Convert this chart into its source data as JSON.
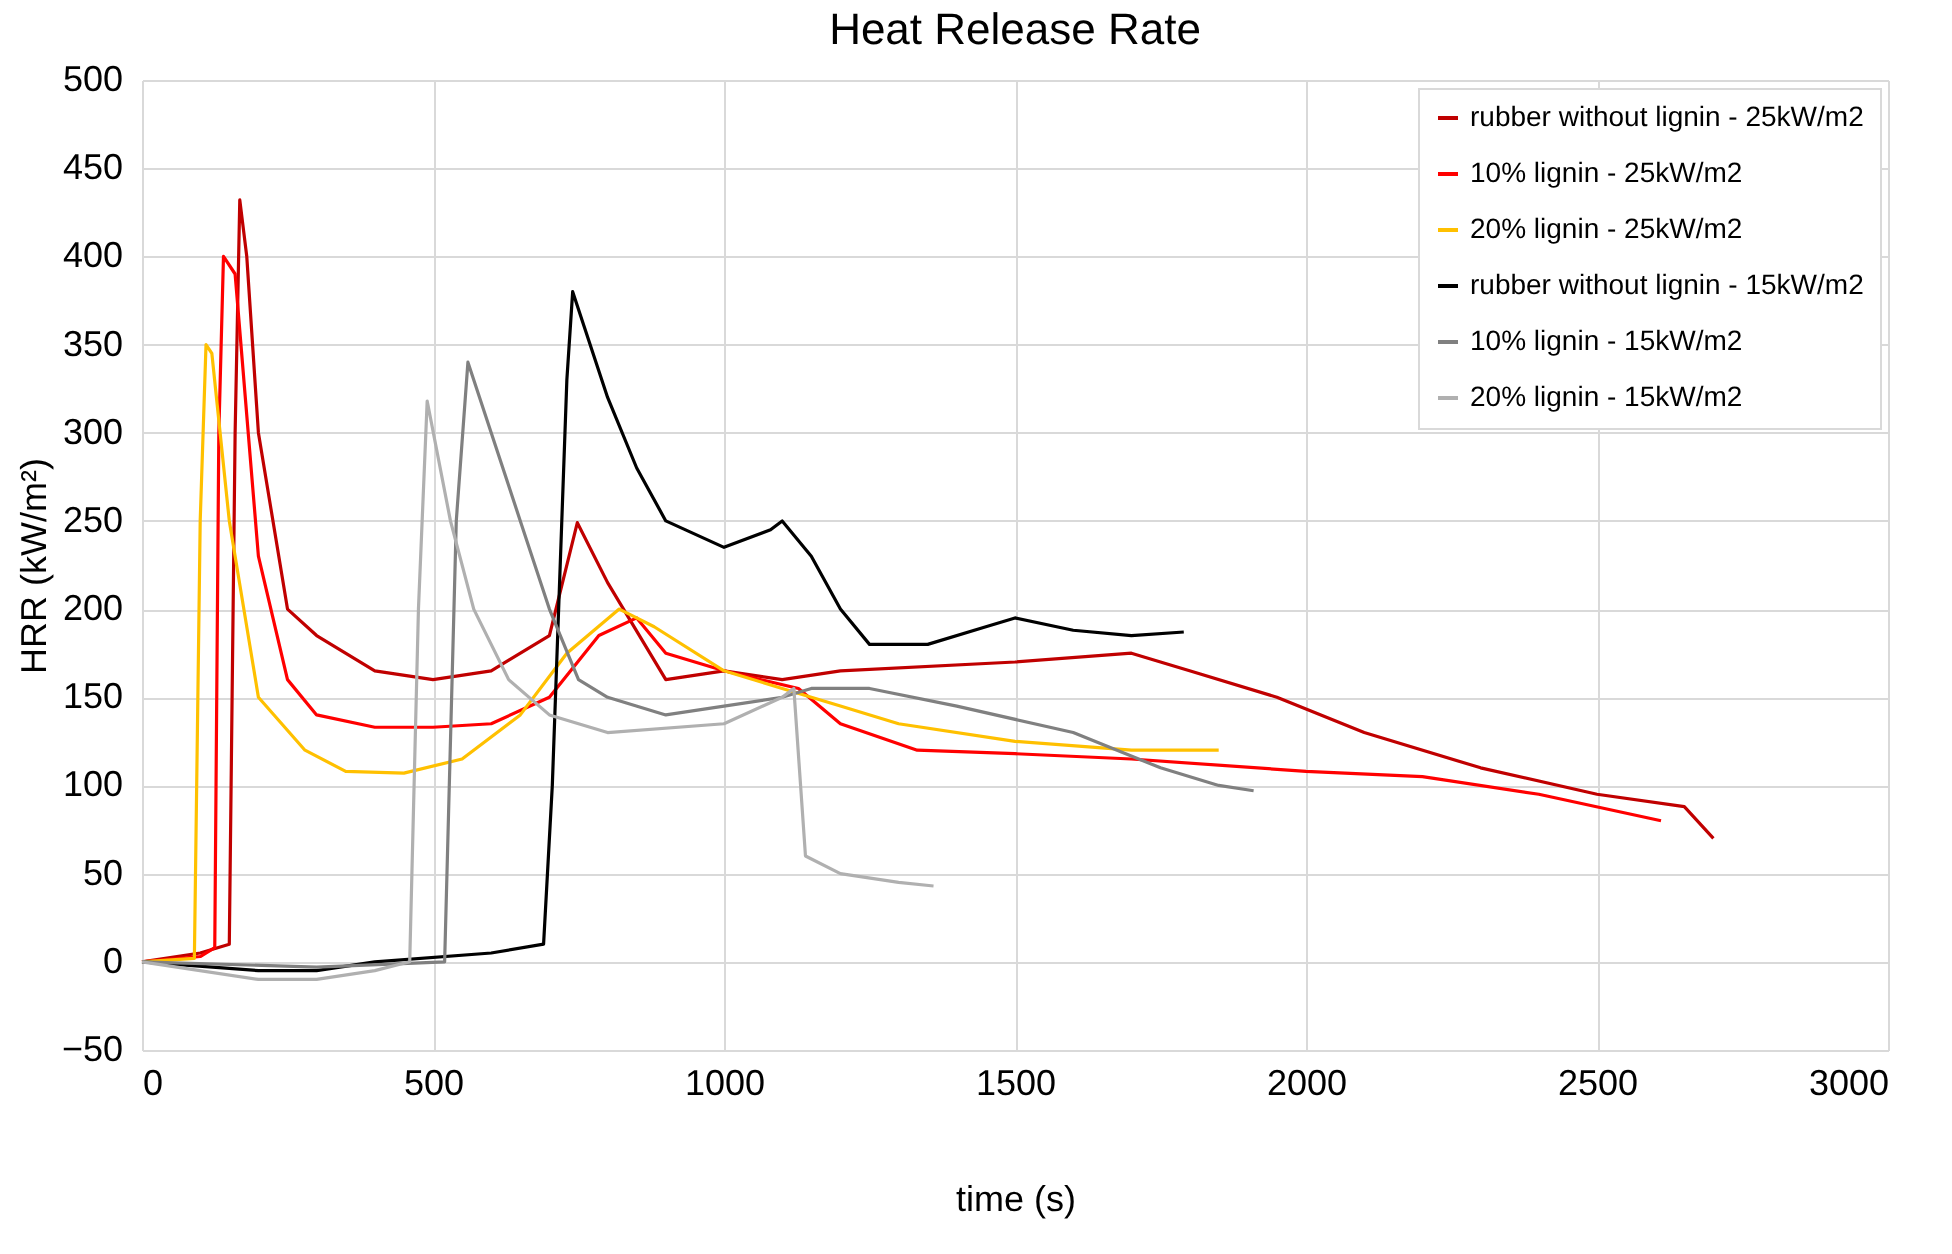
{
  "chart_data": {
    "type": "line",
    "title": "Heat Release Rate",
    "xlabel": "time (s)",
    "ylabel": "HRR (kW/m²)",
    "xlim": [
      0,
      3000
    ],
    "xticks": [
      0,
      500,
      1000,
      1500,
      2000,
      2500,
      3000
    ],
    "ylim": [
      -50,
      500
    ],
    "yticks": [
      -50,
      0,
      50,
      100,
      150,
      200,
      250,
      300,
      350,
      400,
      450,
      500
    ],
    "grid": true,
    "legend": "top right",
    "marker": "none",
    "line_style": "solid",
    "series": [
      {
        "name": "rubber without lignin - 25kW/m2",
        "color": "#c00000",
        "x": [
          0,
          100,
          150,
          160,
          168,
          180,
          200,
          250,
          300,
          400,
          500,
          600,
          700,
          748,
          800,
          900,
          1000,
          1100,
          1200,
          1500,
          1700,
          1800,
          1950,
          2100,
          2300,
          2500,
          2650,
          2700
        ],
        "values": [
          0,
          5,
          10,
          300,
          432,
          400,
          300,
          200,
          185,
          165,
          160,
          165,
          185,
          249,
          215,
          160,
          165,
          160,
          165,
          170,
          175,
          165,
          150,
          130,
          110,
          95,
          88,
          70
        ]
      },
      {
        "name": "10% lignin - 25kW/m2",
        "color": "#ff0000",
        "x": [
          0,
          100,
          125,
          132,
          140,
          160,
          200,
          250,
          300,
          400,
          500,
          600,
          700,
          785,
          850,
          900,
          1000,
          1128,
          1200,
          1332,
          1500,
          1700,
          2000,
          2200,
          2400,
          2610
        ],
        "values": [
          0,
          3,
          8,
          300,
          400,
          390,
          230,
          160,
          140,
          133,
          133,
          135,
          150,
          185,
          195,
          175,
          165,
          155,
          135,
          120,
          118,
          115,
          108,
          105,
          95,
          80
        ]
      },
      {
        "name": "20% lignin - 25kW/m2",
        "color": "#ffc000",
        "x": [
          0,
          90,
          100,
          110,
          120,
          150,
          200,
          280,
          350,
          450,
          550,
          650,
          730,
          820,
          880,
          1000,
          1100,
          1200,
          1300,
          1500,
          1700,
          1850
        ],
        "values": [
          0,
          2,
          250,
          350,
          345,
          250,
          150,
          120,
          108,
          107,
          115,
          140,
          175,
          200,
          190,
          165,
          155,
          145,
          135,
          125,
          120,
          120
        ]
      },
      {
        "name": "rubber without lignin - 15kW/m2",
        "color": "#000000",
        "x": [
          0,
          200,
          300,
          400,
          600,
          690,
          705,
          730,
          740,
          760,
          800,
          850,
          900,
          1000,
          1080,
          1100,
          1150,
          1200,
          1250,
          1350,
          1450,
          1500,
          1600,
          1700,
          1790
        ],
        "values": [
          0,
          -5,
          -5,
          0,
          5,
          10,
          100,
          330,
          380,
          360,
          320,
          280,
          250,
          235,
          245,
          250,
          230,
          200,
          180,
          180,
          190,
          195,
          188,
          185,
          187
        ]
      },
      {
        "name": "10% lignin - 15kW/m2",
        "color": "#808080",
        "x": [
          0,
          300,
          520,
          540,
          560,
          600,
          650,
          700,
          750,
          800,
          900,
          1000,
          1100,
          1150,
          1250,
          1400,
          1600,
          1750,
          1850,
          1910
        ],
        "values": [
          0,
          -3,
          0,
          250,
          340,
          300,
          250,
          200,
          160,
          150,
          140,
          145,
          150,
          155,
          155,
          145,
          130,
          110,
          100,
          97
        ]
      },
      {
        "name": "20% lignin - 15kW/m2",
        "color": "#b0b0b0",
        "x": [
          0,
          200,
          300,
          400,
          460,
          475,
          490,
          530,
          570,
          630,
          700,
          800,
          1000,
          1100,
          1120,
          1140,
          1200,
          1300,
          1360
        ],
        "values": [
          0,
          -10,
          -10,
          -5,
          0,
          200,
          318,
          250,
          200,
          160,
          140,
          130,
          135,
          150,
          155,
          60,
          50,
          45,
          43
        ]
      }
    ]
  }
}
